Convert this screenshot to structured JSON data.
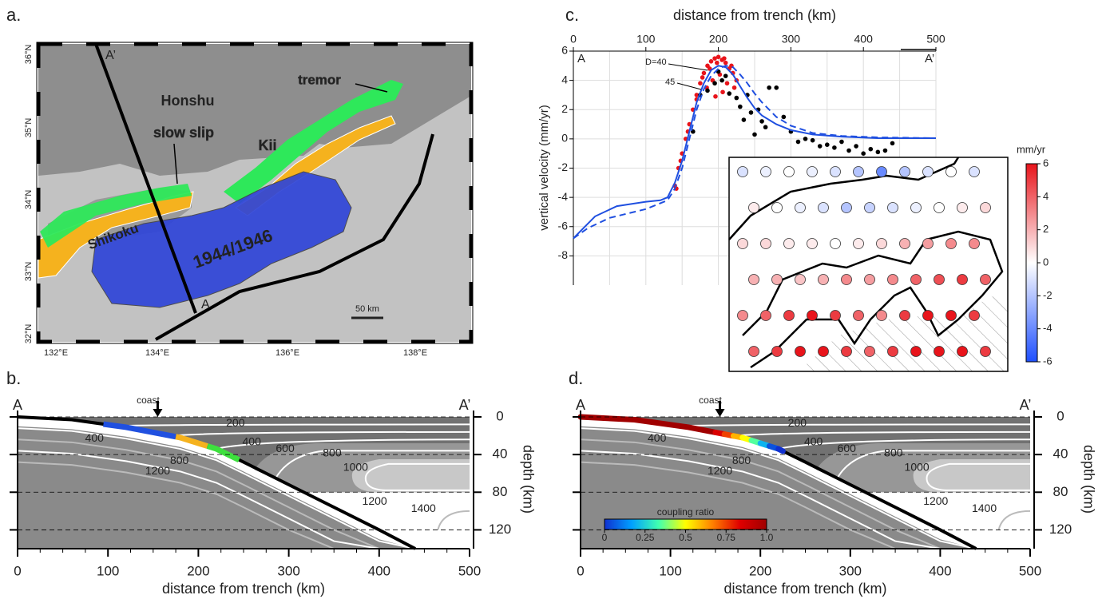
{
  "panels": {
    "a": {
      "label": "a.",
      "lat_labels": [
        "36°N",
        "35°N",
        "34°N",
        "33°N",
        "32°N"
      ],
      "lon_labels": [
        "132°E",
        "134°E",
        "136°E",
        "138°E"
      ],
      "annotations": {
        "a_prime": "A’",
        "a": "A",
        "honshu": "Honshu",
        "tremor": "tremor",
        "slow_slip": "slow slip",
        "kii": "Kii",
        "shikoku": "Shikoku",
        "rupture": "1944/1946",
        "scale": "50 km"
      }
    }
  },
  "chart_data": [
    {
      "type": "line",
      "panel_label": "c.",
      "xlabel": "distance from trench (km)",
      "ylabel": "vertical velocity (mm/yr)",
      "xlim": [
        0,
        500
      ],
      "xticks": [
        0,
        100,
        200,
        300,
        400,
        500
      ],
      "xminor": [
        50,
        150,
        250,
        350,
        450
      ],
      "ylim": [
        -10,
        6
      ],
      "yticks": [
        6,
        4,
        2,
        0,
        -2,
        -4,
        -6,
        -8
      ],
      "grid": true,
      "end_labels": [
        "A",
        "A’"
      ],
      "annotations": [
        "D=40",
        "45"
      ],
      "series": [
        {
          "color": "#1f4fe0",
          "style": "solid",
          "x": [
            0,
            10,
            30,
            60,
            100,
            120,
            130,
            140,
            150,
            160,
            170,
            180,
            190,
            200,
            210,
            220,
            230,
            240,
            250,
            260,
            280,
            300,
            330,
            370,
            420,
            500
          ],
          "values": [
            -6.8,
            -6.3,
            -5.3,
            -4.6,
            -4.3,
            -4.2,
            -4.0,
            -3.0,
            -1.5,
            0.5,
            2.5,
            3.8,
            4.7,
            5.0,
            4.9,
            4.4,
            3.6,
            2.8,
            2.1,
            1.6,
            1.0,
            0.6,
            0.3,
            0.15,
            0.05,
            0.05
          ]
        },
        {
          "color": "#1f4fe0",
          "style": "dashed",
          "x": [
            0,
            20,
            50,
            100,
            130,
            140,
            150,
            160,
            170,
            180,
            190,
            200,
            210,
            220,
            230,
            240,
            250,
            260,
            280,
            300,
            330,
            370,
            420,
            500
          ],
          "values": [
            -6.8,
            -6.1,
            -5.4,
            -4.8,
            -4.2,
            -3.4,
            -2.0,
            0.0,
            2.0,
            3.4,
            4.3,
            4.8,
            5.0,
            4.9,
            4.4,
            3.8,
            3.1,
            2.5,
            1.5,
            0.9,
            0.4,
            0.2,
            0.1,
            0.05
          ]
        }
      ],
      "scatter": [
        {
          "color": "#e8141b",
          "x": [
            140,
            145,
            150,
            155,
            160,
            165,
            170,
            175,
            180,
            185,
            190,
            195,
            200,
            205,
            210,
            215,
            220,
            225,
            178,
            188,
            198,
            208,
            218,
            170,
            158,
            148,
            142,
            192,
            202,
            212,
            222,
            184,
            196,
            206
          ],
          "values": [
            -3.2,
            -2,
            -1,
            0,
            1,
            2,
            3,
            3.8,
            4.5,
            5,
            5.3,
            5.5,
            5.6,
            5.4,
            5.2,
            4.8,
            4.5,
            4,
            4.2,
            4.8,
            5.2,
            5.5,
            5.0,
            2.7,
            0.5,
            -1.5,
            -3.4,
            4.0,
            4.4,
            3.8,
            3.5,
            3.5,
            2.9,
            3.2
          ]
        },
        {
          "color": "#000000",
          "x": [
            165,
            175,
            185,
            195,
            205,
            215,
            225,
            230,
            240,
            245,
            255,
            260,
            270,
            280,
            290,
            300,
            310,
            320,
            330,
            340,
            350,
            360,
            370,
            380,
            390,
            400,
            410,
            420,
            430,
            440,
            235,
            250,
            265,
            200,
            210
          ],
          "values": [
            0.5,
            3,
            3.3,
            3.8,
            4.0,
            3.1,
            2.8,
            2.2,
            3.0,
            1.8,
            2.0,
            1.2,
            3.5,
            3.5,
            1.5,
            0.5,
            -0.2,
            0,
            -0.1,
            -0.5,
            -0.4,
            -0.6,
            -0.2,
            -0.8,
            -0.5,
            -1,
            -0.7,
            -0.9,
            -0.8,
            -0.3,
            1.3,
            0.3,
            0.8,
            4.6,
            4.3
          ]
        }
      ],
      "colorbar": {
        "title": "mm/yr",
        "lim": [
          -6,
          6
        ],
        "ticks": [
          6,
          4,
          2,
          0,
          -2,
          -4,
          -6
        ],
        "colors": [
          "#1e4fff",
          "#ffffff",
          "#e8141b"
        ]
      },
      "inset": {
        "values": [
          -1,
          -0.5,
          0,
          -0.5,
          -1,
          -2,
          -4,
          -2,
          -1,
          0,
          -1,
          0.5,
          0,
          -0.5,
          -1,
          -2,
          -1.5,
          -1,
          -0.5,
          0,
          0.5,
          1,
          1,
          1,
          0.5,
          0.5,
          0,
          0.5,
          1,
          2,
          2.5,
          3,
          3,
          2,
          2,
          1.5,
          2,
          3,
          2.5,
          3,
          4,
          4.5,
          5,
          4,
          3,
          4,
          5,
          6,
          5,
          4,
          3,
          5,
          6,
          6,
          5,
          4,
          5,
          6,
          6,
          5,
          4,
          5,
          6,
          6,
          6,
          5
        ]
      }
    },
    {
      "type": "cross-section",
      "panel_label": "b.",
      "end_labels": [
        "A",
        "A’"
      ],
      "coast_label": "coast",
      "coast": 155,
      "xlabel": "distance from trench (km)",
      "ylabel": "depth (km)",
      "xlim": [
        0,
        500
      ],
      "xticks": [
        0,
        100,
        200,
        300,
        400,
        500
      ],
      "ylim": [
        0,
        140
      ],
      "yticks": [
        0,
        40,
        80,
        120
      ],
      "grid": true,
      "contour_labels": [
        200,
        400,
        400,
        600,
        800,
        800,
        1000,
        1200,
        1200,
        1400
      ],
      "zones": [
        {
          "color": "#2050e0",
          "range": [
            95,
            175
          ]
        },
        {
          "color": "#f5b21e",
          "range": [
            175,
            210
          ]
        },
        {
          "color": "#3ee03e",
          "range": [
            210,
            245
          ]
        }
      ]
    },
    {
      "type": "cross-section",
      "panel_label": "d.",
      "end_labels": [
        "A",
        "A’"
      ],
      "coast_label": "coast",
      "coast": 155,
      "xlabel": "distance from trench (km)",
      "ylabel": "depth (km)",
      "xlim": [
        0,
        500
      ],
      "xticks": [
        0,
        100,
        200,
        300,
        400,
        500
      ],
      "ylim": [
        0,
        140
      ],
      "yticks": [
        0,
        40,
        80,
        120
      ],
      "grid": true,
      "contour_labels": [
        200,
        400,
        400,
        600,
        800,
        800,
        1000,
        1200,
        1200,
        1400
      ],
      "coupling": {
        "x": [
          0,
          150,
          160,
          170,
          180,
          190,
          200,
          210,
          220,
          225
        ],
        "values": [
          1,
          1,
          0.85,
          0.75,
          0.6,
          0.5,
          0.35,
          0.2,
          0.05,
          0
        ]
      },
      "colorbar": {
        "title": "coupling ratio",
        "lim": [
          0,
          1
        ],
        "ticks": [
          0,
          0.25,
          0.5,
          0.75,
          {
            "value": 1,
            "label": "1.0"
          }
        ],
        "colors": [
          "#1030d0",
          "#00a0ff",
          "#40ffb0",
          "#ffff00",
          "#ff8000",
          "#e00000",
          "#a00000"
        ]
      }
    }
  ]
}
